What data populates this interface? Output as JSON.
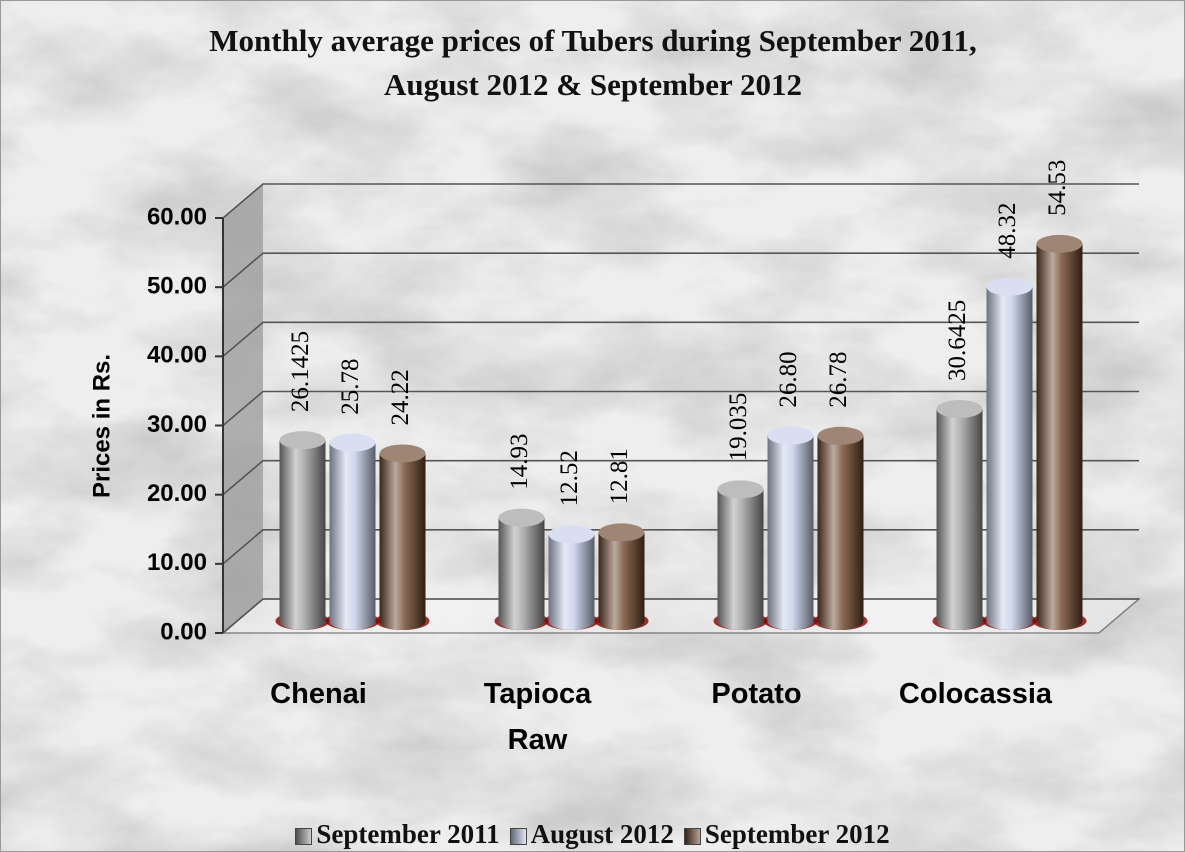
{
  "chart_data": {
    "type": "bar",
    "title": "Monthly average prices of Tubers during September 2011, August 2012 & September 2012",
    "y_label": "Prices in Rs.",
    "categories": [
      "Chenai",
      "Tapioca Raw",
      "Potato",
      "Colocassia"
    ],
    "series": [
      {
        "name": "September 2011",
        "color": "#9a9a9a",
        "values": [
          26.1425,
          14.93,
          19.035,
          30.6425
        ]
      },
      {
        "name": "August 2012",
        "color": "#c4cde8",
        "values": [
          25.78,
          12.52,
          26.8,
          48.32
        ],
        "value_labels": [
          "25.78",
          "12.52",
          "26.80",
          "48.32"
        ]
      },
      {
        "name": "September 2012",
        "color": "#6b4329",
        "values": [
          24.22,
          12.81,
          26.78,
          54.53
        ]
      }
    ],
    "ylim": [
      0,
      60
    ],
    "yticks": [
      {
        "value": 0,
        "label": "0.00"
      },
      {
        "value": 10,
        "label": "10.00"
      },
      {
        "value": 20,
        "label": "20.00"
      },
      {
        "value": 30,
        "label": "30.00"
      },
      {
        "value": 40,
        "label": "40.00"
      },
      {
        "value": 50,
        "label": "50.00"
      },
      {
        "value": 60,
        "label": "60.00"
      }
    ],
    "grid": true,
    "legend": "bottom"
  }
}
